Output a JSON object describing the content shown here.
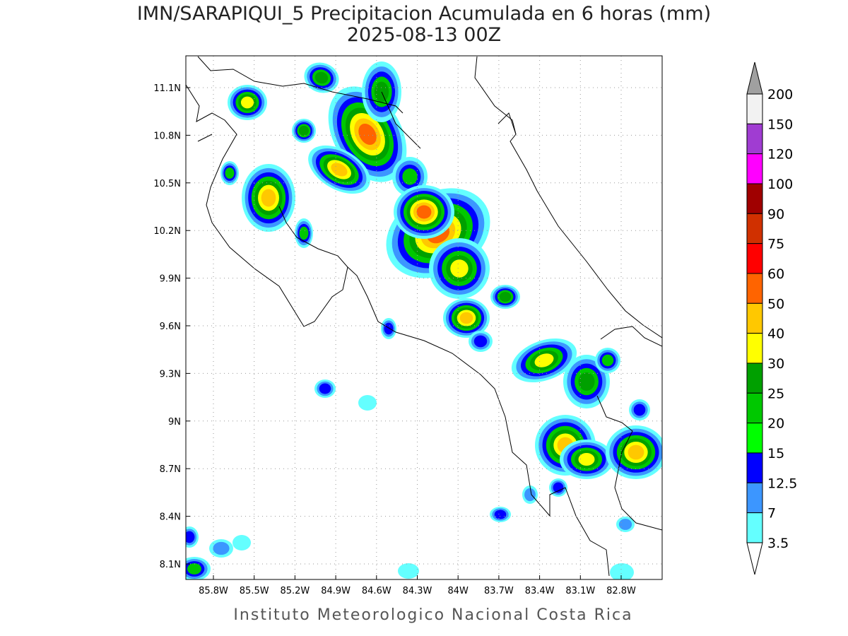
{
  "title": "IMN/SARAPIQUI_5 Precipitacion Acumulada en 6 horas (mm)",
  "subtitle": "2025-08-13 00Z",
  "map": {
    "lon_labels": [
      "85.8W",
      "85.5W",
      "85.2W",
      "84.9W",
      "84.6W",
      "84.3W",
      "84W",
      "83.7W",
      "83.4W",
      "83.1W",
      "82.8W"
    ],
    "lat_labels": [
      "11.1N",
      "10.8N",
      "10.5N",
      "10.2N",
      "9.9N",
      "9.6N",
      "9.3N",
      "9N",
      "8.7N",
      "8.4N",
      "8.1N"
    ]
  },
  "colorbar": {
    "labels": [
      "200",
      "150",
      "120",
      "100",
      "90",
      "75",
      "60",
      "50",
      "40",
      "30",
      "25",
      "20",
      "15",
      "12.5",
      "7",
      "3.5"
    ],
    "colors": [
      "#a0a0a0",
      "#f2f2f2",
      "#a03cd2",
      "#ff00ff",
      "#a00000",
      "#d03000",
      "#ff0000",
      "#ff6400",
      "#ffc800",
      "#ffff00",
      "#00a000",
      "#00c800",
      "#00ff00",
      "#0000ff",
      "#3c96ff",
      "#64ffff",
      "#ffffff"
    ]
  },
  "footer": "Instituto Meteorologico Nacional Costa Rica"
}
